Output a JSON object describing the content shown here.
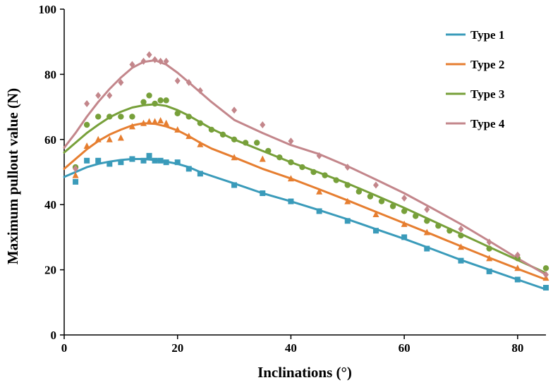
{
  "chart_data": {
    "type": "scatter",
    "xlabel": "Inclinations (°)",
    "ylabel": "Maximum pullout value  (N)",
    "xlim": [
      0,
      85
    ],
    "ylim": [
      0,
      100
    ],
    "xticks": [
      0,
      20,
      40,
      60,
      80
    ],
    "yticks": [
      0,
      20,
      40,
      60,
      80,
      100
    ],
    "grid": false,
    "legend_position": "top-right",
    "series": [
      {
        "name": "Type 1",
        "color": "#3A9BBA",
        "marker": "square",
        "points": [
          [
            2,
            47
          ],
          [
            4,
            53.5
          ],
          [
            6,
            53.5
          ],
          [
            8,
            52.5
          ],
          [
            10,
            53
          ],
          [
            12,
            54
          ],
          [
            14,
            53.5
          ],
          [
            15,
            55
          ],
          [
            16,
            53.5
          ],
          [
            17,
            53.5
          ],
          [
            18,
            53
          ],
          [
            20,
            53
          ],
          [
            22,
            51
          ],
          [
            24,
            49.5
          ],
          [
            30,
            46
          ],
          [
            35,
            43.5
          ],
          [
            40,
            41
          ],
          [
            45,
            38
          ],
          [
            50,
            35
          ],
          [
            55,
            32
          ],
          [
            60,
            30
          ],
          [
            64,
            26.5
          ],
          [
            70,
            22.8
          ],
          [
            75,
            19.5
          ],
          [
            80,
            17
          ],
          [
            85,
            14.5
          ]
        ],
        "fit": [
          [
            0,
            48.5
          ],
          [
            2,
            50
          ],
          [
            4,
            51.5
          ],
          [
            6,
            52.5
          ],
          [
            8,
            53.2
          ],
          [
            10,
            53.7
          ],
          [
            12,
            54
          ],
          [
            14,
            54
          ],
          [
            16,
            53.7
          ],
          [
            18,
            53.2
          ],
          [
            20,
            52.5
          ],
          [
            22,
            51.5
          ],
          [
            24,
            50
          ],
          [
            26,
            48.8
          ],
          [
            30,
            46.5
          ],
          [
            35,
            43.5
          ],
          [
            40,
            41
          ],
          [
            45,
            38.3
          ],
          [
            50,
            35.5
          ],
          [
            55,
            32.5
          ],
          [
            60,
            29.5
          ],
          [
            65,
            26.3
          ],
          [
            70,
            23
          ],
          [
            75,
            20
          ],
          [
            80,
            17
          ],
          [
            85,
            14
          ]
        ]
      },
      {
        "name": "Type 2",
        "color": "#E67E30",
        "marker": "triangle",
        "points": [
          [
            2,
            49
          ],
          [
            4,
            58
          ],
          [
            6,
            60
          ],
          [
            8,
            60
          ],
          [
            10,
            60.5
          ],
          [
            12,
            64
          ],
          [
            14,
            65
          ],
          [
            15,
            65.5
          ],
          [
            16,
            65.5
          ],
          [
            17,
            65.8
          ],
          [
            18,
            65
          ],
          [
            20,
            63
          ],
          [
            22,
            61
          ],
          [
            24,
            58.5
          ],
          [
            30,
            54.5
          ],
          [
            35,
            54
          ],
          [
            40,
            48
          ],
          [
            45,
            44
          ],
          [
            50,
            41
          ],
          [
            55,
            37
          ],
          [
            60,
            34
          ],
          [
            64,
            31.5
          ],
          [
            70,
            27
          ],
          [
            75,
            23.5
          ],
          [
            80,
            20.5
          ],
          [
            85,
            17.5
          ]
        ],
        "fit": [
          [
            0,
            51
          ],
          [
            2,
            54
          ],
          [
            4,
            57
          ],
          [
            6,
            59.5
          ],
          [
            8,
            61.5
          ],
          [
            10,
            63
          ],
          [
            12,
            64.3
          ],
          [
            14,
            65
          ],
          [
            16,
            64.8
          ],
          [
            18,
            64
          ],
          [
            20,
            62.8
          ],
          [
            22,
            61
          ],
          [
            24,
            59
          ],
          [
            26,
            57.2
          ],
          [
            30,
            54.5
          ],
          [
            35,
            51
          ],
          [
            40,
            48
          ],
          [
            45,
            44.7
          ],
          [
            50,
            41.3
          ],
          [
            55,
            37.8
          ],
          [
            60,
            34.3
          ],
          [
            65,
            30.8
          ],
          [
            70,
            27.2
          ],
          [
            75,
            23.7
          ],
          [
            80,
            20.3
          ],
          [
            85,
            17
          ]
        ]
      },
      {
        "name": "Type 3",
        "color": "#77A03A",
        "marker": "circle",
        "points": [
          [
            2,
            51.5
          ],
          [
            4,
            64.5
          ],
          [
            6,
            67
          ],
          [
            8,
            67
          ],
          [
            10,
            67
          ],
          [
            12,
            67
          ],
          [
            14,
            71.5
          ],
          [
            15,
            73.5
          ],
          [
            16,
            71
          ],
          [
            17,
            72
          ],
          [
            18,
            72
          ],
          [
            20,
            68
          ],
          [
            22,
            67
          ],
          [
            24,
            65
          ],
          [
            26,
            63
          ],
          [
            28,
            61.5
          ],
          [
            30,
            60
          ],
          [
            32,
            59
          ],
          [
            34,
            59
          ],
          [
            36,
            56.5
          ],
          [
            38,
            54.5
          ],
          [
            40,
            53
          ],
          [
            42,
            51.5
          ],
          [
            44,
            50
          ],
          [
            46,
            49
          ],
          [
            48,
            47.5
          ],
          [
            50,
            46
          ],
          [
            52,
            44
          ],
          [
            54,
            42.5
          ],
          [
            56,
            41
          ],
          [
            58,
            39.5
          ],
          [
            60,
            38
          ],
          [
            62,
            36.5
          ],
          [
            64,
            35
          ],
          [
            66,
            33.5
          ],
          [
            68,
            32
          ],
          [
            70,
            30.5
          ],
          [
            75,
            26.5
          ],
          [
            80,
            23.5
          ],
          [
            85,
            20.5
          ]
        ],
        "fit": [
          [
            0,
            56
          ],
          [
            2,
            59
          ],
          [
            4,
            62
          ],
          [
            6,
            64.5
          ],
          [
            8,
            66.8
          ],
          [
            10,
            68.5
          ],
          [
            12,
            69.8
          ],
          [
            14,
            70.5
          ],
          [
            16,
            70.8
          ],
          [
            18,
            70.3
          ],
          [
            20,
            69
          ],
          [
            22,
            67.3
          ],
          [
            24,
            65.3
          ],
          [
            26,
            63.3
          ],
          [
            30,
            60
          ],
          [
            35,
            56.5
          ],
          [
            40,
            53
          ],
          [
            45,
            49.8
          ],
          [
            50,
            46.5
          ],
          [
            55,
            42.8
          ],
          [
            60,
            39
          ],
          [
            65,
            35
          ],
          [
            70,
            31
          ],
          [
            75,
            27
          ],
          [
            80,
            23
          ],
          [
            85,
            19
          ]
        ]
      },
      {
        "name": "Type 4",
        "color": "#C3868B",
        "marker": "diamond",
        "points": [
          [
            2,
            51
          ],
          [
            4,
            71
          ],
          [
            6,
            73.5
          ],
          [
            8,
            73.5
          ],
          [
            10,
            77.5
          ],
          [
            12,
            83
          ],
          [
            14,
            84
          ],
          [
            15,
            86
          ],
          [
            16,
            84.5
          ],
          [
            17,
            84
          ],
          [
            18,
            84
          ],
          [
            20,
            78
          ],
          [
            22,
            77.5
          ],
          [
            24,
            75
          ],
          [
            30,
            69
          ],
          [
            35,
            64.5
          ],
          [
            40,
            59.5
          ],
          [
            45,
            55
          ],
          [
            50,
            51.5
          ],
          [
            55,
            46
          ],
          [
            60,
            42
          ],
          [
            64,
            38.5
          ],
          [
            70,
            32.5
          ],
          [
            75,
            28.5
          ],
          [
            80,
            24.5
          ],
          [
            85,
            18.5
          ]
        ],
        "fit": [
          [
            0,
            57.5
          ],
          [
            2,
            62
          ],
          [
            4,
            67
          ],
          [
            6,
            71.5
          ],
          [
            8,
            75.5
          ],
          [
            10,
            79
          ],
          [
            12,
            82
          ],
          [
            14,
            83.8
          ],
          [
            16,
            84.3
          ],
          [
            18,
            83
          ],
          [
            20,
            80.5
          ],
          [
            22,
            77.5
          ],
          [
            24,
            74.5
          ],
          [
            26,
            71.5
          ],
          [
            30,
            66
          ],
          [
            35,
            62
          ],
          [
            40,
            58.3
          ],
          [
            45,
            55.5
          ],
          [
            50,
            51.8
          ],
          [
            55,
            47.7
          ],
          [
            60,
            43.5
          ],
          [
            65,
            38.8
          ],
          [
            70,
            34
          ],
          [
            75,
            28.8
          ],
          [
            80,
            23.5
          ],
          [
            85,
            18.5
          ]
        ]
      }
    ]
  }
}
